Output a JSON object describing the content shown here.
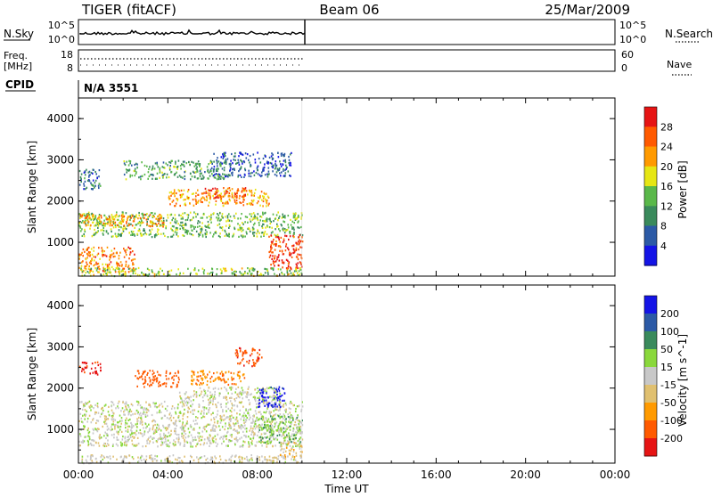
{
  "header": {
    "radar": "TIGER (fitACF)",
    "beam": "Beam 06",
    "date": "25/Mar/2009"
  },
  "top_panels": {
    "nsky_label": "N.Sky",
    "nsky_ticks": [
      "10^5",
      "10^0"
    ],
    "nsearch_label": "N.Search",
    "nsearch_ticks": [
      "10^5",
      "10^0"
    ],
    "freq_label": "Freq.",
    "freq_unit": "[MHz]",
    "freq_ticks": [
      "18",
      "8"
    ],
    "nave_label": "Nave",
    "nave_ticks": [
      "60",
      "0"
    ],
    "cpid_label": "CPID",
    "cpid_value": "N/A 3551"
  },
  "colors": {
    "power": [
      "#1414e6",
      "#2c5aa6",
      "#3a8a5c",
      "#5ab84a",
      "#e6e614",
      "#ff9a00",
      "#ff5a00",
      "#e61414"
    ],
    "velocity": [
      "#e61414",
      "#ff5a00",
      "#ff9a00",
      "#e0c070",
      "#c8c8c8",
      "#8ad83c",
      "#3a8a5c",
      "#2c5aa6",
      "#1414e6"
    ]
  },
  "chart_data": [
    {
      "type": "heatmap",
      "title": "Power",
      "xlabel": "",
      "ylabel": "Slant Range [km]",
      "xlim": [
        0,
        24
      ],
      "ylim": [
        180,
        4500
      ],
      "x_ticks": [
        "00:00",
        "04:00",
        "08:00",
        "12:00",
        "16:00",
        "20:00",
        "00:00"
      ],
      "y_ticks": [
        "1000",
        "2000",
        "3000",
        "4000"
      ],
      "colorbar_label": "Power [dB]",
      "colorbar_ticks": [
        "4",
        "8",
        "12",
        "16",
        "20",
        "24",
        "28"
      ],
      "data_extent_hours": [
        0,
        10
      ],
      "regions": [
        {
          "t0": 0.0,
          "t1": 10.0,
          "r0": 1150,
          "r1": 1750,
          "v": 14
        },
        {
          "t0": 0.0,
          "t1": 3.8,
          "r0": 1400,
          "r1": 1700,
          "v": 22
        },
        {
          "t0": 4.0,
          "t1": 8.5,
          "r0": 1900,
          "r1": 2300,
          "v": 22
        },
        {
          "t0": 5.5,
          "t1": 7.5,
          "r0": 2100,
          "r1": 2350,
          "v": 27
        },
        {
          "t0": 8.5,
          "t1": 10.0,
          "r0": 350,
          "r1": 1200,
          "v": 28
        },
        {
          "t0": 0.0,
          "t1": 2.5,
          "r0": 300,
          "r1": 900,
          "v": 24
        },
        {
          "t0": 0.0,
          "t1": 1.0,
          "r0": 2300,
          "r1": 2800,
          "v": 8
        },
        {
          "t0": 2.0,
          "t1": 6.5,
          "r0": 2550,
          "r1": 3000,
          "v": 12
        },
        {
          "t0": 6.0,
          "t1": 9.5,
          "r0": 2600,
          "r1": 3200,
          "v": 6
        },
        {
          "t0": 0.0,
          "t1": 10.0,
          "r0": 200,
          "r1": 400,
          "v": 16
        }
      ]
    },
    {
      "type": "heatmap",
      "title": "Velocity",
      "xlabel": "Time UT",
      "ylabel": "Slant Range [km]",
      "xlim": [
        0,
        24
      ],
      "ylim": [
        180,
        4500
      ],
      "x_ticks": [
        "00:00",
        "04:00",
        "08:00",
        "12:00",
        "16:00",
        "20:00",
        "00:00"
      ],
      "y_ticks": [
        "1000",
        "2000",
        "3000",
        "4000"
      ],
      "colorbar_label": "Velocity [m s^-1]",
      "colorbar_ticks": [
        "200",
        "100",
        "50",
        "15",
        "-15",
        "-50",
        "-100",
        "-200"
      ],
      "data_extent_hours": [
        0,
        10
      ],
      "regions": [
        {
          "t0": 0.0,
          "t1": 10.0,
          "r0": 600,
          "r1": 1700,
          "v": 0
        },
        {
          "t0": 4.5,
          "t1": 9.0,
          "r0": 1700,
          "r1": 2050,
          "v": 0
        },
        {
          "t0": 0.0,
          "t1": 1.0,
          "r0": 2350,
          "r1": 2650,
          "v": -220
        },
        {
          "t0": 2.5,
          "t1": 4.5,
          "r0": 2050,
          "r1": 2450,
          "v": -150
        },
        {
          "t0": 5.0,
          "t1": 7.5,
          "r0": 2100,
          "r1": 2450,
          "v": -90
        },
        {
          "t0": 7.0,
          "t1": 8.2,
          "r0": 2550,
          "r1": 3000,
          "v": -180
        },
        {
          "t0": 8.0,
          "t1": 9.2,
          "r0": 1550,
          "r1": 2050,
          "v": 220
        },
        {
          "t0": 8.0,
          "t1": 10.0,
          "r0": 700,
          "r1": 1350,
          "v": 40
        },
        {
          "t0": 9.0,
          "t1": 10.0,
          "r0": 350,
          "r1": 700,
          "v": -40
        },
        {
          "t0": 0.0,
          "t1": 10.0,
          "r0": 200,
          "r1": 400,
          "v": -10
        }
      ]
    }
  ]
}
